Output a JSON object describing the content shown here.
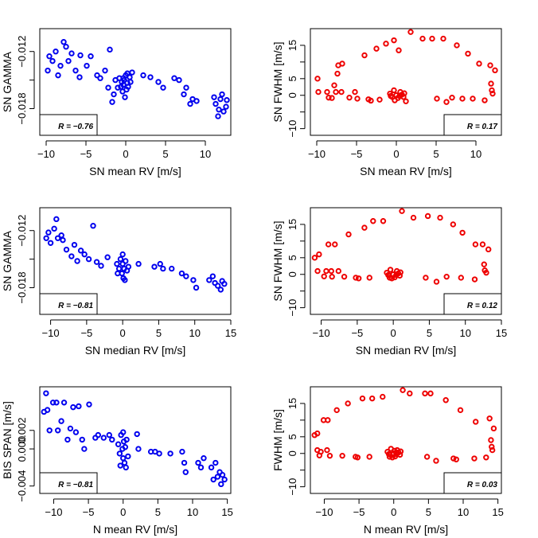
{
  "chart_data": [
    {
      "type": "scatter",
      "xlabel": "SN mean RV [m/s]",
      "ylabel": "SN GAMMA",
      "xlim": [
        -10.8,
        13.2
      ],
      "ylim": [
        -0.0208,
        -0.0096
      ],
      "xticks": [
        -10,
        -5,
        0,
        5,
        10
      ],
      "yticks": [
        -0.018,
        -0.015,
        -0.012
      ],
      "ytick_labels": [
        "−0.018",
        "",
        "−0.012"
      ],
      "annotation": "R = −0.76",
      "color": "#0000ee",
      "points": [
        [
          -9.8,
          -0.014
        ],
        [
          -9.6,
          -0.0125
        ],
        [
          -9.2,
          -0.013
        ],
        [
          -8.8,
          -0.012
        ],
        [
          -8.5,
          -0.0145
        ],
        [
          -8.2,
          -0.0135
        ],
        [
          -7.8,
          -0.011
        ],
        [
          -7.5,
          -0.0115
        ],
        [
          -7.2,
          -0.013
        ],
        [
          -6.8,
          -0.0122
        ],
        [
          -6.3,
          -0.014
        ],
        [
          -5.8,
          -0.0147
        ],
        [
          -5.7,
          -0.0124
        ],
        [
          -4.9,
          -0.0135
        ],
        [
          -4.4,
          -0.0125
        ],
        [
          -3.6,
          -0.0145
        ],
        [
          -3.2,
          -0.0148
        ],
        [
          -2.6,
          -0.014
        ],
        [
          -2.2,
          -0.0158
        ],
        [
          -2.0,
          -0.0118
        ],
        [
          -1.7,
          -0.0173
        ],
        [
          -1.5,
          -0.0165
        ],
        [
          -1.3,
          -0.015
        ],
        [
          -1.0,
          -0.0158
        ],
        [
          -0.8,
          -0.0148
        ],
        [
          -0.5,
          -0.0152
        ],
        [
          -0.4,
          -0.0162
        ],
        [
          -0.3,
          -0.0155
        ],
        [
          -0.2,
          -0.015
        ],
        [
          -0.1,
          -0.0168
        ],
        [
          0.0,
          -0.0145
        ],
        [
          0.1,
          -0.016
        ],
        [
          0.2,
          -0.0153
        ],
        [
          0.3,
          -0.0157
        ],
        [
          0.5,
          -0.0147
        ],
        [
          0.6,
          -0.0152
        ],
        [
          0.8,
          -0.0142
        ],
        [
          -0.6,
          -0.0157
        ],
        [
          -0.3,
          -0.0148
        ],
        [
          0.2,
          -0.0143
        ],
        [
          2.2,
          -0.0145
        ],
        [
          3.1,
          -0.0147
        ],
        [
          4.1,
          -0.0152
        ],
        [
          4.7,
          -0.0158
        ],
        [
          6.1,
          -0.0148
        ],
        [
          6.7,
          -0.015
        ],
        [
          7.3,
          -0.0165
        ],
        [
          7.6,
          -0.0158
        ],
        [
          8.1,
          -0.0175
        ],
        [
          8.4,
          -0.017
        ],
        [
          8.9,
          -0.0172
        ],
        [
          11.1,
          -0.0168
        ],
        [
          11.3,
          -0.0175
        ],
        [
          11.6,
          -0.0188
        ],
        [
          11.7,
          -0.0181
        ],
        [
          11.9,
          -0.017
        ],
        [
          12.1,
          -0.0165
        ],
        [
          12.3,
          -0.0183
        ],
        [
          12.6,
          -0.0178
        ],
        [
          12.7,
          -0.0171
        ]
      ]
    },
    {
      "type": "scatter",
      "xlabel": "SN mean RV [m/s]",
      "ylabel": "SN FWHM [m/s]",
      "xlim": [
        -10.8,
        13.2
      ],
      "ylim": [
        -12,
        20
      ],
      "xticks": [
        -10,
        -5,
        0,
        5,
        10
      ],
      "yticks": [
        -10,
        -5,
        0,
        5,
        10,
        15
      ],
      "ytick_labels": [
        "−10",
        "",
        "0",
        "5",
        "",
        "15"
      ],
      "annotation": "R = 0.17",
      "color": "#ee0000",
      "points": [
        [
          -9.9,
          5
        ],
        [
          -9.8,
          1
        ],
        [
          -8.7,
          1
        ],
        [
          -8.5,
          -0.7
        ],
        [
          -8.1,
          -0.8
        ],
        [
          -7.8,
          3
        ],
        [
          -7.6,
          1
        ],
        [
          -7.4,
          6.5
        ],
        [
          -6.9,
          1
        ],
        [
          -7.3,
          9
        ],
        [
          -6.8,
          9.5
        ],
        [
          -5.9,
          -0.7
        ],
        [
          -5.2,
          1
        ],
        [
          -4.9,
          -1
        ],
        [
          -4.0,
          12
        ],
        [
          -3.5,
          -1.2
        ],
        [
          -3.2,
          -1.6
        ],
        [
          -2.5,
          14
        ],
        [
          -2.1,
          -1.3
        ],
        [
          -1.3,
          15.5
        ],
        [
          -0.3,
          16.5
        ],
        [
          0.3,
          13.5
        ],
        [
          1.8,
          19
        ],
        [
          3.3,
          17
        ],
        [
          4.5,
          17
        ],
        [
          5.1,
          -1
        ],
        [
          5.9,
          17
        ],
        [
          6.3,
          -2
        ],
        [
          7.0,
          -0.7
        ],
        [
          7.6,
          15
        ],
        [
          8.3,
          -1
        ],
        [
          9.0,
          12.5
        ],
        [
          9.6,
          -1
        ],
        [
          10.4,
          9.5
        ],
        [
          11.1,
          -1.5
        ],
        [
          11.8,
          9
        ],
        [
          11.9,
          3.5
        ],
        [
          12.0,
          1.5
        ],
        [
          12.1,
          0.5
        ],
        [
          12.4,
          7.5
        ],
        [
          -0.8,
          0.5
        ],
        [
          -0.5,
          -0.5
        ],
        [
          -0.3,
          1.5
        ],
        [
          0.0,
          0.0
        ],
        [
          0.2,
          -0.8
        ],
        [
          0.5,
          1.0
        ],
        [
          0.7,
          0.2
        ],
        [
          0.9,
          -0.5
        ],
        [
          -0.7,
          -0.2
        ],
        [
          1.2,
          -1.8
        ],
        [
          -0.2,
          -1.5
        ],
        [
          0.4,
          -0.2
        ],
        [
          1.0,
          0.6
        ]
      ]
    },
    {
      "type": "scatter",
      "xlabel": "SN median RV [m/s]",
      "ylabel": "SN GAMMA",
      "xlim": [
        -11.5,
        15
      ],
      "ylim": [
        -0.0208,
        -0.0096
      ],
      "xticks": [
        -10,
        -5,
        0,
        5,
        10,
        15
      ],
      "yticks": [
        -0.018,
        -0.015,
        -0.012
      ],
      "ytick_labels": [
        "−0.018",
        "",
        "−0.012"
      ],
      "annotation": "R = −0.81",
      "color": "#0000ee",
      "points": [
        [
          -10.6,
          -0.0128
        ],
        [
          -10.3,
          -0.0122
        ],
        [
          -10.0,
          -0.0133
        ],
        [
          -9.5,
          -0.0118
        ],
        [
          -9.2,
          -0.0108
        ],
        [
          -9.0,
          -0.0128
        ],
        [
          -8.5,
          -0.0125
        ],
        [
          -8.3,
          -0.013
        ],
        [
          -7.8,
          -0.014
        ],
        [
          -7.1,
          -0.0147
        ],
        [
          -6.7,
          -0.0135
        ],
        [
          -6.3,
          -0.0152
        ],
        [
          -5.8,
          -0.0141
        ],
        [
          -5.3,
          -0.0145
        ],
        [
          -4.7,
          -0.015
        ],
        [
          -4.1,
          -0.0115
        ],
        [
          -3.6,
          -0.0153
        ],
        [
          -3.0,
          -0.0157
        ],
        [
          -2.1,
          -0.0148
        ],
        [
          -0.8,
          -0.0155
        ],
        [
          -0.5,
          -0.016
        ],
        [
          -0.3,
          -0.015
        ],
        [
          -0.1,
          -0.0165
        ],
        [
          0.0,
          -0.0155
        ],
        [
          0.1,
          -0.017
        ],
        [
          0.2,
          -0.016
        ],
        [
          0.4,
          -0.0152
        ],
        [
          0.6,
          -0.0162
        ],
        [
          0.8,
          -0.0158
        ],
        [
          -0.7,
          -0.0165
        ],
        [
          0.0,
          -0.0145
        ],
        [
          0.3,
          -0.0172
        ],
        [
          2.2,
          -0.0155
        ],
        [
          4.4,
          -0.0158
        ],
        [
          5.2,
          -0.0155
        ],
        [
          5.6,
          -0.016
        ],
        [
          6.8,
          -0.016
        ],
        [
          8.2,
          -0.0165
        ],
        [
          8.8,
          -0.0168
        ],
        [
          9.8,
          -0.0172
        ],
        [
          10.2,
          -0.018
        ],
        [
          12.0,
          -0.0172
        ],
        [
          12.5,
          -0.0168
        ],
        [
          12.8,
          -0.0175
        ],
        [
          13.2,
          -0.0178
        ],
        [
          13.6,
          -0.0182
        ],
        [
          13.8,
          -0.0173
        ],
        [
          14.1,
          -0.0176
        ]
      ]
    },
    {
      "type": "scatter",
      "xlabel": "SN median RV [m/s]",
      "ylabel": "SN FWHM [m/s]",
      "xlim": [
        -11.5,
        15
      ],
      "ylim": [
        -12,
        20
      ],
      "xticks": [
        -10,
        -5,
        0,
        5,
        10,
        15
      ],
      "yticks": [
        -10,
        -5,
        0,
        5,
        10,
        15
      ],
      "ytick_labels": [
        "−10",
        "",
        "0",
        "5",
        "",
        "15"
      ],
      "annotation": "R = 0.12",
      "color": "#ee0000",
      "points": [
        [
          -10.9,
          5
        ],
        [
          -10.5,
          1
        ],
        [
          -10.3,
          6
        ],
        [
          -9.6,
          -0.6
        ],
        [
          -9.3,
          1
        ],
        [
          -9.0,
          9
        ],
        [
          -8.6,
          1
        ],
        [
          -8.5,
          -0.7
        ],
        [
          -8.1,
          9
        ],
        [
          -7.6,
          1
        ],
        [
          -6.8,
          -0.7
        ],
        [
          -6.2,
          12
        ],
        [
          -5.2,
          -1
        ],
        [
          -4.8,
          -1.2
        ],
        [
          -4.0,
          14
        ],
        [
          -3.3,
          -1
        ],
        [
          -2.8,
          16
        ],
        [
          -1.4,
          16
        ],
        [
          -0.5,
          -1.0
        ],
        [
          1.2,
          19
        ],
        [
          2.8,
          17
        ],
        [
          4.5,
          -1
        ],
        [
          4.8,
          17.5
        ],
        [
          6.0,
          -2.2
        ],
        [
          6.5,
          17
        ],
        [
          7.4,
          -0.7
        ],
        [
          8.3,
          15
        ],
        [
          9.4,
          -1
        ],
        [
          9.6,
          12.5
        ],
        [
          11.3,
          -1.5
        ],
        [
          11.4,
          9
        ],
        [
          12.4,
          9
        ],
        [
          12.6,
          3
        ],
        [
          12.7,
          1.2
        ],
        [
          12.9,
          0.5
        ],
        [
          13.2,
          7.5
        ],
        [
          -0.9,
          0.5
        ],
        [
          -0.6,
          -0.3
        ],
        [
          -0.4,
          1.4
        ],
        [
          0.0,
          0.0
        ],
        [
          0.2,
          -0.9
        ],
        [
          0.5,
          1.0
        ],
        [
          0.7,
          0.3
        ],
        [
          0.9,
          -0.4
        ],
        [
          -0.7,
          -0.2
        ],
        [
          0.4,
          -0.2
        ],
        [
          1.0,
          0.6
        ],
        [
          -0.2,
          -1.2
        ]
      ]
    },
    {
      "type": "scatter",
      "xlabel": "N mean RV [m/s]",
      "ylabel": "BIS SPAN [m/s]",
      "xlim": [
        -12,
        15.5
      ],
      "ylim": [
        -0.0048,
        0.0067
      ],
      "xticks": [
        -10,
        -5,
        0,
        5,
        10,
        15
      ],
      "yticks": [
        -0.004,
        0.0,
        0.002
      ],
      "ytick_labels": [
        "−0.004",
        "0.000",
        "0.002"
      ],
      "annotation": "R = −0.81",
      "color": "#0000ee",
      "points": [
        [
          -11.4,
          0.004
        ],
        [
          -11.1,
          0.006
        ],
        [
          -10.9,
          0.0042
        ],
        [
          -10.6,
          0.002
        ],
        [
          -10.1,
          0.005
        ],
        [
          -9.6,
          0.005
        ],
        [
          -9.4,
          0.002
        ],
        [
          -8.9,
          0.003
        ],
        [
          -8.5,
          0.005
        ],
        [
          -8.0,
          0.001
        ],
        [
          -7.6,
          0.0022
        ],
        [
          -7.2,
          0.0045
        ],
        [
          -6.8,
          0.0018
        ],
        [
          -6.4,
          0.0046
        ],
        [
          -5.9,
          0.001
        ],
        [
          -5.6,
          0.0
        ],
        [
          -4.9,
          0.0048
        ],
        [
          -4.0,
          0.0012
        ],
        [
          -3.6,
          0.0015
        ],
        [
          -2.8,
          0.0012
        ],
        [
          -2.0,
          0.0015
        ],
        [
          -1.6,
          0.001
        ],
        [
          -0.7,
          0.0005
        ],
        [
          -0.5,
          -0.0005
        ],
        [
          -0.3,
          0.0015
        ],
        [
          -0.1,
          0.0
        ],
        [
          0.0,
          -0.001
        ],
        [
          0.1,
          0.0008
        ],
        [
          0.2,
          -0.0015
        ],
        [
          0.3,
          0.0002
        ],
        [
          0.4,
          -0.002
        ],
        [
          0.5,
          0.001
        ],
        [
          0.7,
          -0.0008
        ],
        [
          -0.4,
          -0.0018
        ],
        [
          0.0,
          0.0018
        ],
        [
          2.0,
          0.0016
        ],
        [
          2.2,
          0.0
        ],
        [
          4.0,
          -0.0003
        ],
        [
          4.6,
          -0.0003
        ],
        [
          5.2,
          -0.0005
        ],
        [
          6.8,
          -0.0005
        ],
        [
          8.5,
          -0.0003
        ],
        [
          8.8,
          -0.0015
        ],
        [
          9.0,
          -0.0025
        ],
        [
          10.8,
          -0.0015
        ],
        [
          11.2,
          -0.002
        ],
        [
          11.6,
          -0.001
        ],
        [
          12.7,
          -0.002
        ],
        [
          13.0,
          -0.0033
        ],
        [
          13.3,
          -0.0015
        ],
        [
          13.6,
          -0.003
        ],
        [
          13.9,
          -0.0025
        ],
        [
          14.1,
          -0.0038
        ],
        [
          14.3,
          -0.0028
        ],
        [
          14.6,
          -0.0033
        ]
      ]
    },
    {
      "type": "scatter",
      "xlabel": "N mean RV [m/s]",
      "ylabel": "FWHM [m/s]",
      "xlim": [
        -12,
        15.5
      ],
      "ylim": [
        -12,
        20
      ],
      "xticks": [
        -10,
        -5,
        0,
        5,
        10,
        15
      ],
      "yticks": [
        -10,
        -5,
        0,
        5,
        10,
        15
      ],
      "ytick_labels": [
        "−10",
        "",
        "0",
        "5",
        "",
        "15"
      ],
      "annotation": "R = 0.03",
      "color": "#ee0000",
      "points": [
        [
          -11.4,
          5.5
        ],
        [
          -11.0,
          6
        ],
        [
          -11.0,
          1
        ],
        [
          -10.7,
          -0.6
        ],
        [
          -10.5,
          0.5
        ],
        [
          -10.1,
          10
        ],
        [
          -9.6,
          1
        ],
        [
          -9.5,
          10
        ],
        [
          -9.2,
          -0.7
        ],
        [
          -8.2,
          13
        ],
        [
          -7.4,
          -0.7
        ],
        [
          -6.6,
          15
        ],
        [
          -5.5,
          -1
        ],
        [
          -5.2,
          -1.2
        ],
        [
          -4.5,
          16.5
        ],
        [
          -3.5,
          -1
        ],
        [
          -3.1,
          16.5
        ],
        [
          -1.6,
          17
        ],
        [
          -0.6,
          -1.0
        ],
        [
          1.3,
          19
        ],
        [
          2.3,
          18
        ],
        [
          4.5,
          18
        ],
        [
          4.8,
          -1
        ],
        [
          5.3,
          18
        ],
        [
          6.1,
          -2.2
        ],
        [
          7.5,
          16
        ],
        [
          8.6,
          -1.5
        ],
        [
          9.0,
          -1.8
        ],
        [
          9.6,
          13
        ],
        [
          11.6,
          -1.5
        ],
        [
          11.8,
          9.5
        ],
        [
          13.3,
          -1.2
        ],
        [
          13.8,
          10.5
        ],
        [
          14.0,
          4
        ],
        [
          14.1,
          2
        ],
        [
          14.2,
          1
        ],
        [
          14.4,
          7.5
        ],
        [
          -0.9,
          0.5
        ],
        [
          -0.6,
          -0.3
        ],
        [
          -0.4,
          1.4
        ],
        [
          0.0,
          0.0
        ],
        [
          0.2,
          -0.9
        ],
        [
          0.5,
          1.0
        ],
        [
          0.7,
          0.3
        ],
        [
          0.9,
          -0.4
        ],
        [
          -0.7,
          -0.2
        ],
        [
          0.4,
          -0.2
        ],
        [
          1.0,
          0.6
        ],
        [
          -0.2,
          -1.2
        ],
        [
          0.1,
          0.8
        ]
      ]
    }
  ]
}
